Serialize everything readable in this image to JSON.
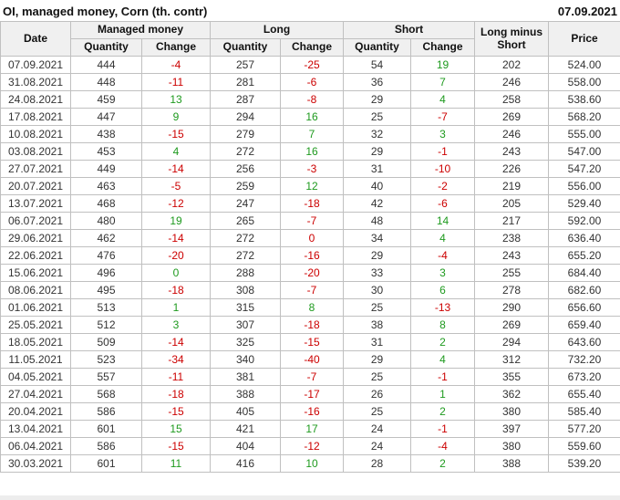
{
  "chart_data": {
    "type": "table",
    "title": "OI, managed money, Corn (th. contr)",
    "report_date": "07.09.2021",
    "column_groups": {
      "managed_money": "Managed money",
      "long": "Long",
      "short": "Short"
    },
    "headers": {
      "date": "Date",
      "quantity": "Quantity",
      "change": "Change",
      "long_minus_short": "Long minus Short",
      "price": "Price"
    },
    "rows": [
      {
        "date": "07.09.2021",
        "managed_money": {
          "quantity": 444,
          "change": -4,
          "change_color": "negative"
        },
        "long": {
          "quantity": 257,
          "change": -25,
          "change_color": "negative"
        },
        "short": {
          "quantity": 54,
          "change": 19,
          "change_color": "positive"
        },
        "long_minus_short": 202,
        "price": "524.00"
      },
      {
        "date": "31.08.2021",
        "managed_money": {
          "quantity": 448,
          "change": -11,
          "change_color": "negative"
        },
        "long": {
          "quantity": 281,
          "change": -6,
          "change_color": "negative"
        },
        "short": {
          "quantity": 36,
          "change": 7,
          "change_color": "positive"
        },
        "long_minus_short": 246,
        "price": "558.00"
      },
      {
        "date": "24.08.2021",
        "managed_money": {
          "quantity": 459,
          "change": 13,
          "change_color": "positive"
        },
        "long": {
          "quantity": 287,
          "change": -8,
          "change_color": "negative"
        },
        "short": {
          "quantity": 29,
          "change": 4,
          "change_color": "positive"
        },
        "long_minus_short": 258,
        "price": "538.60"
      },
      {
        "date": "17.08.2021",
        "managed_money": {
          "quantity": 447,
          "change": 9,
          "change_color": "positive"
        },
        "long": {
          "quantity": 294,
          "change": 16,
          "change_color": "positive"
        },
        "short": {
          "quantity": 25,
          "change": -7,
          "change_color": "negative"
        },
        "long_minus_short": 269,
        "price": "568.20"
      },
      {
        "date": "10.08.2021",
        "managed_money": {
          "quantity": 438,
          "change": -15,
          "change_color": "negative"
        },
        "long": {
          "quantity": 279,
          "change": 7,
          "change_color": "positive"
        },
        "short": {
          "quantity": 32,
          "change": 3,
          "change_color": "positive"
        },
        "long_minus_short": 246,
        "price": "555.00"
      },
      {
        "date": "03.08.2021",
        "managed_money": {
          "quantity": 453,
          "change": 4,
          "change_color": "positive"
        },
        "long": {
          "quantity": 272,
          "change": 16,
          "change_color": "positive"
        },
        "short": {
          "quantity": 29,
          "change": -1,
          "change_color": "negative"
        },
        "long_minus_short": 243,
        "price": "547.00"
      },
      {
        "date": "27.07.2021",
        "managed_money": {
          "quantity": 449,
          "change": -14,
          "change_color": "negative"
        },
        "long": {
          "quantity": 256,
          "change": -3,
          "change_color": "negative"
        },
        "short": {
          "quantity": 31,
          "change": -10,
          "change_color": "negative"
        },
        "long_minus_short": 226,
        "price": "547.20"
      },
      {
        "date": "20.07.2021",
        "managed_money": {
          "quantity": 463,
          "change": -5,
          "change_color": "negative"
        },
        "long": {
          "quantity": 259,
          "change": 12,
          "change_color": "positive"
        },
        "short": {
          "quantity": 40,
          "change": -2,
          "change_color": "negative"
        },
        "long_minus_short": 219,
        "price": "556.00"
      },
      {
        "date": "13.07.2021",
        "managed_money": {
          "quantity": 468,
          "change": -12,
          "change_color": "negative"
        },
        "long": {
          "quantity": 247,
          "change": -18,
          "change_color": "negative"
        },
        "short": {
          "quantity": 42,
          "change": -6,
          "change_color": "negative"
        },
        "long_minus_short": 205,
        "price": "529.40"
      },
      {
        "date": "06.07.2021",
        "managed_money": {
          "quantity": 480,
          "change": 19,
          "change_color": "positive"
        },
        "long": {
          "quantity": 265,
          "change": -7,
          "change_color": "negative"
        },
        "short": {
          "quantity": 48,
          "change": 14,
          "change_color": "positive"
        },
        "long_minus_short": 217,
        "price": "592.00"
      },
      {
        "date": "29.06.2021",
        "managed_money": {
          "quantity": 462,
          "change": -14,
          "change_color": "negative"
        },
        "long": {
          "quantity": 272,
          "change": 0,
          "change_color": "negative"
        },
        "short": {
          "quantity": 34,
          "change": 4,
          "change_color": "positive"
        },
        "long_minus_short": 238,
        "price": "636.40"
      },
      {
        "date": "22.06.2021",
        "managed_money": {
          "quantity": 476,
          "change": -20,
          "change_color": "negative"
        },
        "long": {
          "quantity": 272,
          "change": -16,
          "change_color": "negative"
        },
        "short": {
          "quantity": 29,
          "change": -4,
          "change_color": "negative"
        },
        "long_minus_short": 243,
        "price": "655.20"
      },
      {
        "date": "15.06.2021",
        "managed_money": {
          "quantity": 496,
          "change": 0,
          "change_color": "positive"
        },
        "long": {
          "quantity": 288,
          "change": -20,
          "change_color": "negative"
        },
        "short": {
          "quantity": 33,
          "change": 3,
          "change_color": "positive"
        },
        "long_minus_short": 255,
        "price": "684.40"
      },
      {
        "date": "08.06.2021",
        "managed_money": {
          "quantity": 495,
          "change": -18,
          "change_color": "negative"
        },
        "long": {
          "quantity": 308,
          "change": -7,
          "change_color": "negative"
        },
        "short": {
          "quantity": 30,
          "change": 6,
          "change_color": "positive"
        },
        "long_minus_short": 278,
        "price": "682.60"
      },
      {
        "date": "01.06.2021",
        "managed_money": {
          "quantity": 513,
          "change": 1,
          "change_color": "positive"
        },
        "long": {
          "quantity": 315,
          "change": 8,
          "change_color": "positive"
        },
        "short": {
          "quantity": 25,
          "change": -13,
          "change_color": "negative"
        },
        "long_minus_short": 290,
        "price": "656.60"
      },
      {
        "date": "25.05.2021",
        "managed_money": {
          "quantity": 512,
          "change": 3,
          "change_color": "positive"
        },
        "long": {
          "quantity": 307,
          "change": -18,
          "change_color": "negative"
        },
        "short": {
          "quantity": 38,
          "change": 8,
          "change_color": "positive"
        },
        "long_minus_short": 269,
        "price": "659.40"
      },
      {
        "date": "18.05.2021",
        "managed_money": {
          "quantity": 509,
          "change": -14,
          "change_color": "negative"
        },
        "long": {
          "quantity": 325,
          "change": -15,
          "change_color": "negative"
        },
        "short": {
          "quantity": 31,
          "change": 2,
          "change_color": "positive"
        },
        "long_minus_short": 294,
        "price": "643.60"
      },
      {
        "date": "11.05.2021",
        "managed_money": {
          "quantity": 523,
          "change": -34,
          "change_color": "negative"
        },
        "long": {
          "quantity": 340,
          "change": -40,
          "change_color": "negative"
        },
        "short": {
          "quantity": 29,
          "change": 4,
          "change_color": "positive"
        },
        "long_minus_short": 312,
        "price": "732.20"
      },
      {
        "date": "04.05.2021",
        "managed_money": {
          "quantity": 557,
          "change": -11,
          "change_color": "negative"
        },
        "long": {
          "quantity": 381,
          "change": -7,
          "change_color": "negative"
        },
        "short": {
          "quantity": 25,
          "change": -1,
          "change_color": "negative"
        },
        "long_minus_short": 355,
        "price": "673.20"
      },
      {
        "date": "27.04.2021",
        "managed_money": {
          "quantity": 568,
          "change": -18,
          "change_color": "negative"
        },
        "long": {
          "quantity": 388,
          "change": -17,
          "change_color": "negative"
        },
        "short": {
          "quantity": 26,
          "change": 1,
          "change_color": "positive"
        },
        "long_minus_short": 362,
        "price": "655.40"
      },
      {
        "date": "20.04.2021",
        "managed_money": {
          "quantity": 586,
          "change": -15,
          "change_color": "negative"
        },
        "long": {
          "quantity": 405,
          "change": -16,
          "change_color": "negative"
        },
        "short": {
          "quantity": 25,
          "change": 2,
          "change_color": "positive"
        },
        "long_minus_short": 380,
        "price": "585.40"
      },
      {
        "date": "13.04.2021",
        "managed_money": {
          "quantity": 601,
          "change": 15,
          "change_color": "positive"
        },
        "long": {
          "quantity": 421,
          "change": 17,
          "change_color": "positive"
        },
        "short": {
          "quantity": 24,
          "change": -1,
          "change_color": "negative"
        },
        "long_minus_short": 397,
        "price": "577.20"
      },
      {
        "date": "06.04.2021",
        "managed_money": {
          "quantity": 586,
          "change": -15,
          "change_color": "negative"
        },
        "long": {
          "quantity": 404,
          "change": -12,
          "change_color": "negative"
        },
        "short": {
          "quantity": 24,
          "change": -4,
          "change_color": "negative"
        },
        "long_minus_short": 380,
        "price": "559.60"
      },
      {
        "date": "30.03.2021",
        "managed_money": {
          "quantity": 601,
          "change": 11,
          "change_color": "positive"
        },
        "long": {
          "quantity": 416,
          "change": 10,
          "change_color": "positive"
        },
        "short": {
          "quantity": 28,
          "change": 2,
          "change_color": "positive"
        },
        "long_minus_short": 388,
        "price": "539.20"
      }
    ]
  },
  "colors": {
    "positive_change": "#1e9a1e",
    "negative_change": "#cc0000",
    "header_bg": "#f0f0f0",
    "border": "#c0c0c0"
  }
}
